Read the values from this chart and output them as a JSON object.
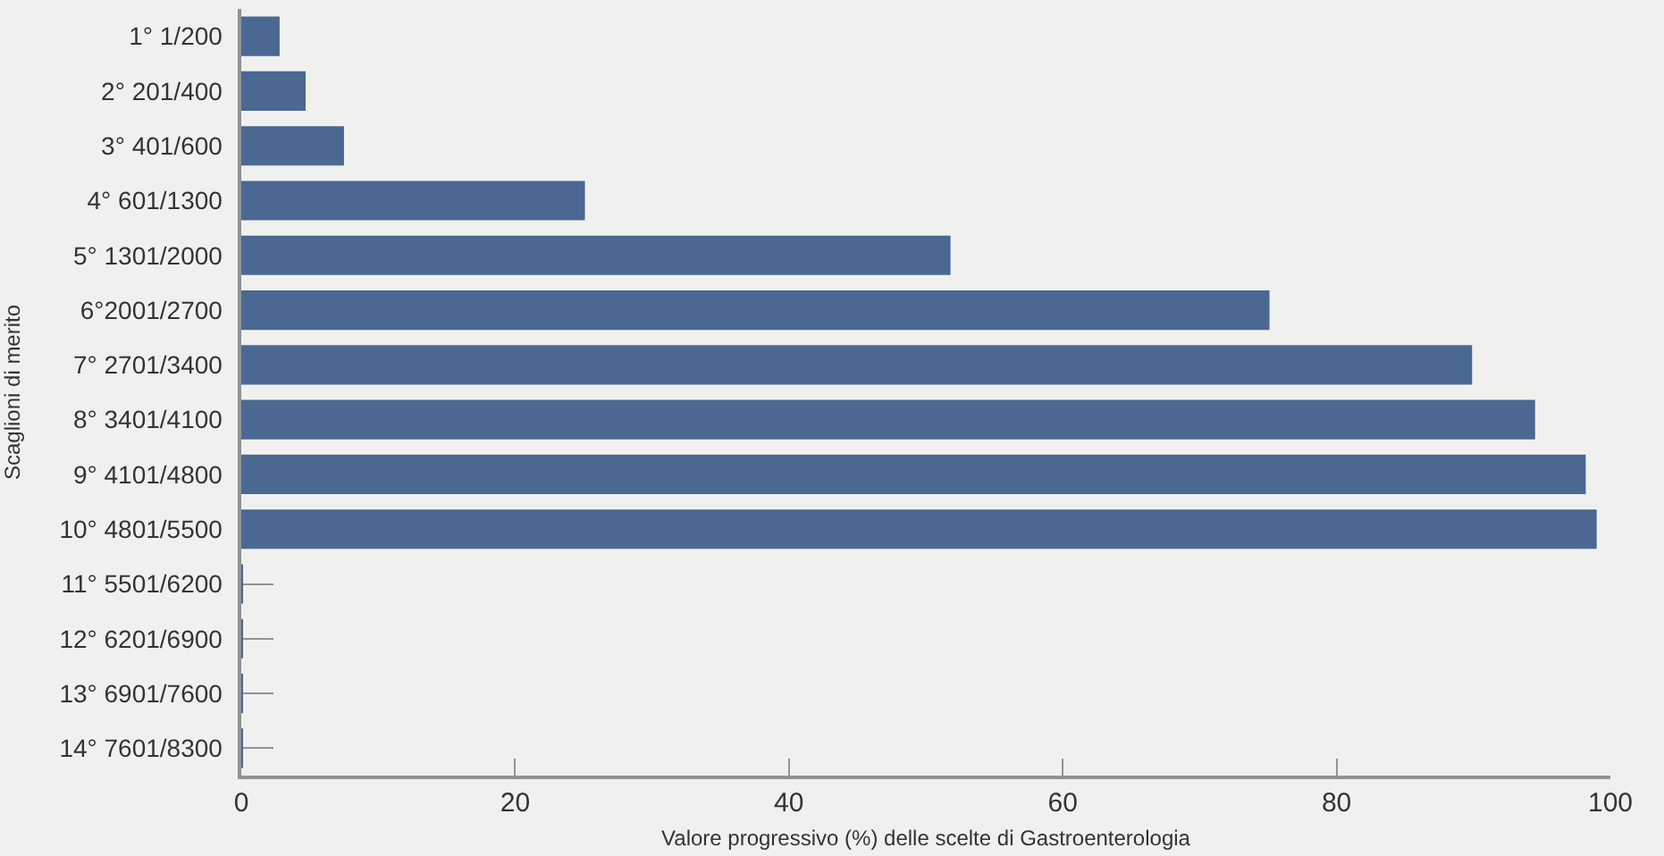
{
  "chart_data": {
    "type": "bar",
    "orientation": "horizontal",
    "xlabel": "Valore progressivo (%) delle scelte di Gastroenterologia",
    "ylabel": "Scaglioni di merito",
    "categories": [
      "1° 1/200",
      "2° 201/400",
      "3° 401/600",
      "4° 601/1300",
      "5° 1301/2000",
      "6°2001/2700",
      "7° 2701/3400",
      "8° 3401/4100",
      "9° 4101/4800",
      "10° 4801/5500",
      "11° 5501/6200",
      "12° 6201/6900",
      "13° 6901/7600",
      "14° 7601/8300"
    ],
    "values": [
      2.8,
      4.7,
      7.5,
      25.1,
      51.8,
      75.1,
      89.9,
      94.5,
      98.2,
      99.0,
      0.1,
      0.1,
      0.1,
      0.1
    ],
    "color": "#4a6892",
    "xlim": [
      0,
      100
    ],
    "xticks": [
      0,
      20,
      40,
      60,
      80,
      100
    ]
  }
}
